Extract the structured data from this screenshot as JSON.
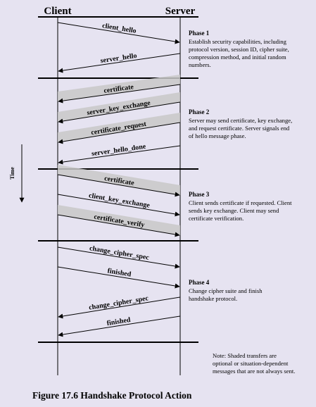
{
  "header": {
    "client": "Client",
    "server": "Server"
  },
  "time_label": "Time",
  "messages": [
    {
      "label": "client_hello",
      "direction": "to-server",
      "shaded": false
    },
    {
      "label": "server_hello",
      "direction": "to-client",
      "shaded": false
    },
    {
      "label": "certificate",
      "direction": "to-client",
      "shaded": true
    },
    {
      "label": "server_key_exchange",
      "direction": "to-client",
      "shaded": true
    },
    {
      "label": "certificate_request",
      "direction": "to-client",
      "shaded": true
    },
    {
      "label": "server_hello_done",
      "direction": "to-client",
      "shaded": false
    },
    {
      "label": "certificate",
      "direction": "to-server",
      "shaded": true
    },
    {
      "label": "client_key_exchange",
      "direction": "to-server",
      "shaded": false
    },
    {
      "label": "certificate_verify",
      "direction": "to-server",
      "shaded": true
    },
    {
      "label": "change_cipher_spec",
      "direction": "to-server",
      "shaded": false
    },
    {
      "label": "finished",
      "direction": "to-server",
      "shaded": false
    },
    {
      "label": "change_cipher_spec",
      "direction": "to-client",
      "shaded": false
    },
    {
      "label": "finished",
      "direction": "to-client",
      "shaded": false
    }
  ],
  "phases": [
    {
      "title": "Phase 1",
      "lines": [
        "Establish security capabilities, including",
        "protocol version, session ID, cipher suite,",
        "compression method, and initial random",
        "numbers."
      ]
    },
    {
      "title": "Phase 2",
      "lines": [
        "Server may send certificate, key exchange,",
        "and request certificate. Server signals end",
        "of hello message phase."
      ]
    },
    {
      "title": "Phase 3",
      "lines": [
        "Client sends certificate if requested. Client",
        "sends key exchange. Client may send",
        "certificate verification."
      ]
    },
    {
      "title": "Phase 4",
      "lines": [
        "Change cipher suite and finish",
        "handshake protocol."
      ]
    }
  ],
  "note_lines": [
    "Note: Shaded transfers are",
    "optional or situation-dependent",
    "messages that are not always sent."
  ],
  "caption": "Figure 17.6  Handshake Protocol Action"
}
